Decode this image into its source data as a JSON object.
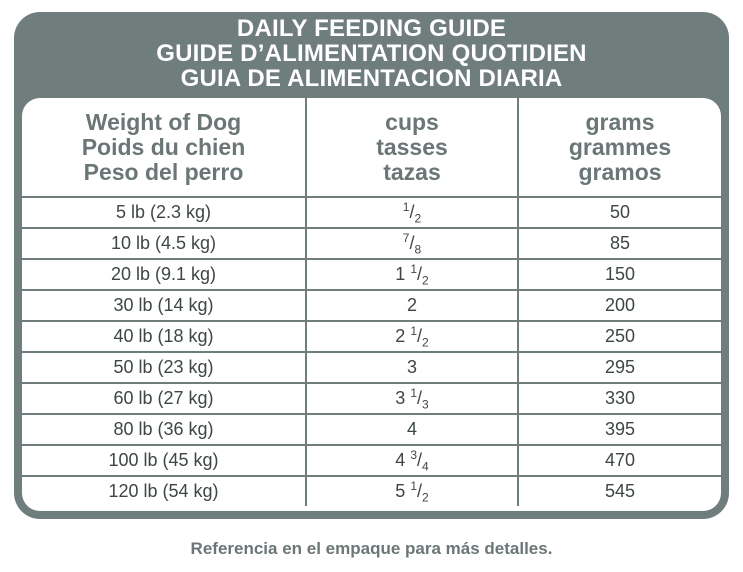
{
  "header": {
    "line1": "DAILY FEEDING GUIDE",
    "line2": "GUIDE D’ALIMENTATION QUOTIDIEN",
    "line3": "GUIA DE ALIMENTACION DIARIA"
  },
  "columns": [
    {
      "lines": [
        "Weight of Dog",
        "Poids du chien",
        "Peso del perro"
      ]
    },
    {
      "lines": [
        "cups",
        "tasses",
        "tazas"
      ]
    },
    {
      "lines": [
        "grams",
        "grammes",
        "gramos"
      ]
    }
  ],
  "rows": [
    {
      "weight": "5 lb (2.3 kg)",
      "whole": "",
      "num": "1",
      "den": "2",
      "grams": "50"
    },
    {
      "weight": "10 lb (4.5 kg)",
      "whole": "",
      "num": "7",
      "den": "8",
      "grams": "85"
    },
    {
      "weight": "20 lb (9.1 kg)",
      "whole": "1",
      "num": "1",
      "den": "2",
      "grams": "150"
    },
    {
      "weight": "30 lb (14 kg)",
      "whole": "2",
      "num": "",
      "den": "",
      "grams": "200"
    },
    {
      "weight": "40 lb (18 kg)",
      "whole": "2",
      "num": "1",
      "den": "2",
      "grams": "250"
    },
    {
      "weight": "50 lb (23 kg)",
      "whole": "3",
      "num": "",
      "den": "",
      "grams": "295"
    },
    {
      "weight": "60 lb (27 kg)",
      "whole": "3",
      "num": "1",
      "den": "3",
      "grams": "330"
    },
    {
      "weight": "80 lb (36 kg)",
      "whole": "4",
      "num": "",
      "den": "",
      "grams": "395"
    },
    {
      "weight": "100 lb (45 kg)",
      "whole": "4",
      "num": "3",
      "den": "4",
      "grams": "470"
    },
    {
      "weight": "120 lb (54 kg)",
      "whole": "5",
      "num": "1",
      "den": "2",
      "grams": "545"
    }
  ],
  "footer": "Referencia en el empaque para más detalles.",
  "colors": {
    "frame": "#6f7d7d",
    "header_text": "#6b7676",
    "cell_text": "#3f4646"
  }
}
